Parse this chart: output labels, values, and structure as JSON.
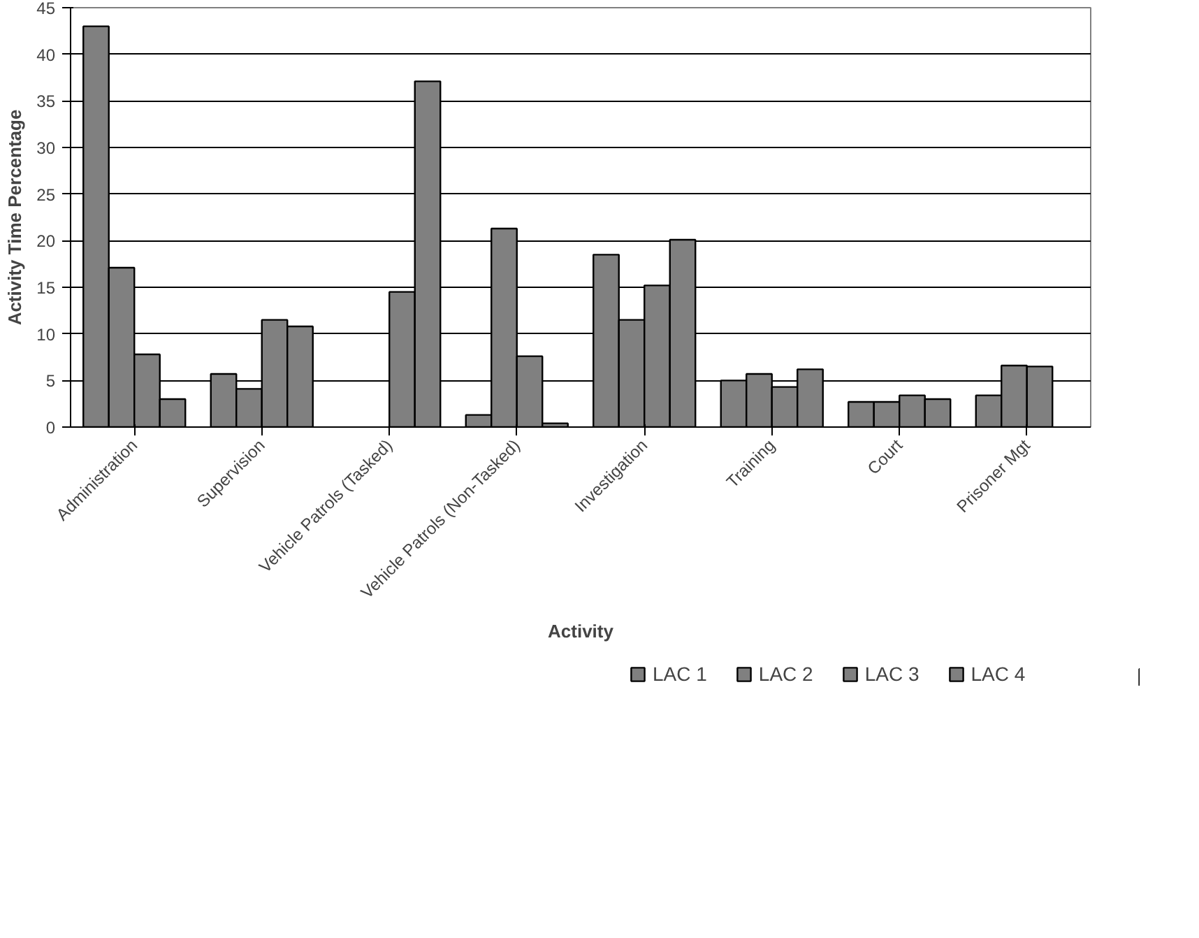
{
  "chart_data": {
    "type": "bar",
    "xlabel": "Activity",
    "ylabel": "Activity Time Percentage",
    "categories": [
      "Administration",
      "Supervision",
      "Vehicle Patrols (Tasked)",
      "Vehicle Patrols (Non-Tasked)",
      "Investigation",
      "Training",
      "Court",
      "Prisoner Mgt"
    ],
    "series": [
      {
        "name": "LAC 1",
        "color": "#808080",
        "values": [
          43,
          5.7,
          null,
          1.3,
          18.5,
          5.0,
          2.7,
          3.4
        ]
      },
      {
        "name": "LAC 2",
        "color": "#808080",
        "values": [
          17.1,
          4.1,
          null,
          21.3,
          11.5,
          5.7,
          2.7,
          6.6
        ]
      },
      {
        "name": "LAC 3",
        "color": "#808080",
        "values": [
          7.8,
          11.5,
          14.5,
          7.6,
          15.2,
          4.3,
          3.4,
          6.5
        ]
      },
      {
        "name": "LAC 4",
        "color": "#808080",
        "values": [
          3.0,
          10.8,
          37.1,
          0.4,
          20.1,
          6.2,
          3.0,
          null
        ]
      }
    ],
    "ylim": [
      0,
      45
    ],
    "yticks": [
      0,
      5,
      10,
      15,
      20,
      25,
      30,
      35,
      40,
      45
    ],
    "grid": "y",
    "legend": "bottom"
  }
}
